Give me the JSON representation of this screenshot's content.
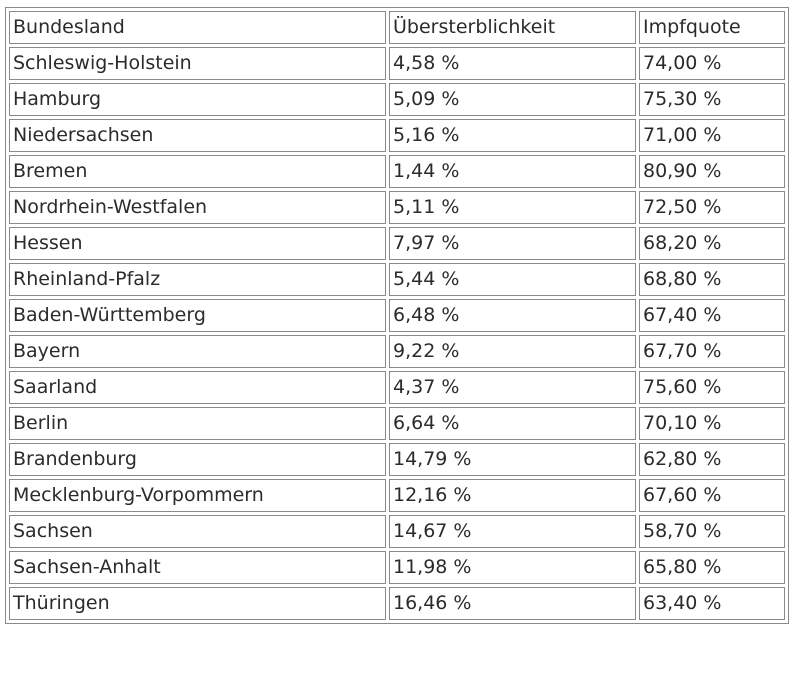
{
  "table": {
    "headers": [
      "Bundesland",
      "Übersterblichkeit",
      "Impfquote"
    ],
    "rows": [
      [
        "Schleswig-Holstein",
        "4,58 %",
        "74,00 %"
      ],
      [
        "Hamburg",
        "5,09 %",
        "75,30 %"
      ],
      [
        "Niedersachsen",
        "5,16 %",
        "71,00 %"
      ],
      [
        "Bremen",
        "1,44 %",
        "80,90 %"
      ],
      [
        "Nordrhein-Westfalen",
        "5,11 %",
        "72,50 %"
      ],
      [
        "Hessen",
        "7,97 %",
        "68,20 %"
      ],
      [
        "Rheinland-Pfalz",
        "5,44 %",
        "68,80 %"
      ],
      [
        "Baden-Württemberg",
        "6,48 %",
        "67,40 %"
      ],
      [
        "Bayern",
        "9,22 %",
        "67,70 %"
      ],
      [
        "Saarland",
        "4,37 %",
        "75,60 %"
      ],
      [
        "Berlin",
        "6,64 %",
        "70,10 %"
      ],
      [
        "Brandenburg",
        "14,79 %",
        "62,80 %"
      ],
      [
        "Mecklenburg-Vorpommern",
        "12,16 %",
        "67,60 %"
      ],
      [
        "Sachsen",
        "14,67 %",
        "58,70 %"
      ],
      [
        "Sachsen-Anhalt",
        "11,98 %",
        "65,80 %"
      ],
      [
        "Thüringen",
        "16,46 %",
        "63,40 %"
      ]
    ]
  }
}
